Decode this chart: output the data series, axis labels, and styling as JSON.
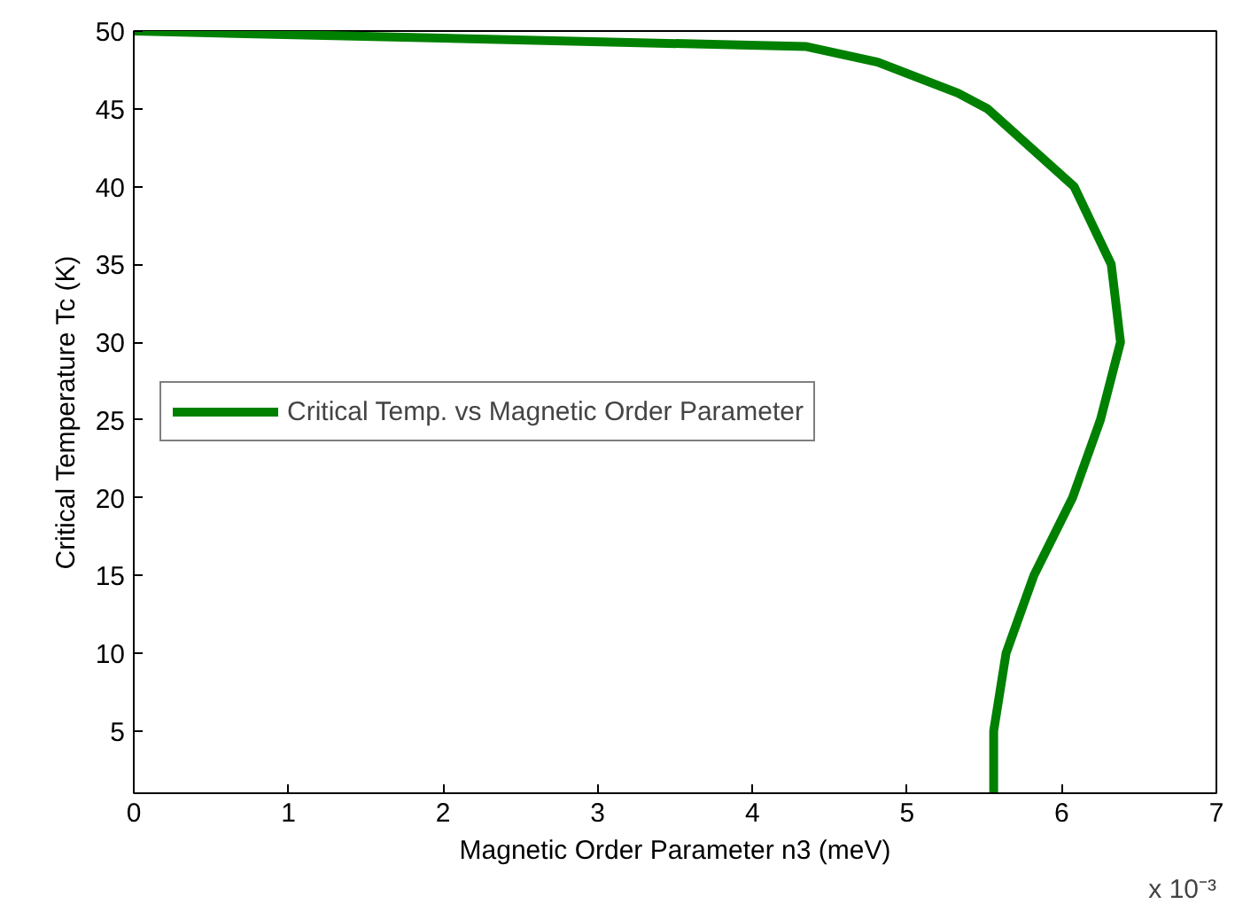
{
  "chart_data": {
    "type": "line",
    "xlabel": "Magnetic Order Parameter n3 (meV)",
    "ylabel": "Critical Temperature Tc (K)",
    "x": [
      0,
      4.35,
      4.81,
      5.33,
      5.52,
      6.08,
      6.32,
      6.38,
      6.25,
      6.07,
      5.82,
      5.64,
      5.56,
      5.56
    ],
    "series": [
      {
        "name": "Critical Temp. vs Magnetic Order Parameter",
        "color": "#008000",
        "values": [
          50,
          49,
          48,
          46,
          45,
          40,
          35,
          30,
          25,
          20,
          15,
          10,
          5,
          1
        ]
      }
    ],
    "xlim": [
      0,
      7
    ],
    "ylim": [
      1,
      50
    ],
    "xticks": [
      0,
      1,
      2,
      3,
      4,
      5,
      6,
      7
    ],
    "yticks": [
      5,
      10,
      15,
      20,
      25,
      30,
      35,
      40,
      45,
      50
    ],
    "annotations": [
      "x 10⁻³"
    ],
    "legend": "left",
    "grid": false,
    "marker": "none",
    "line_style": "solid"
  }
}
